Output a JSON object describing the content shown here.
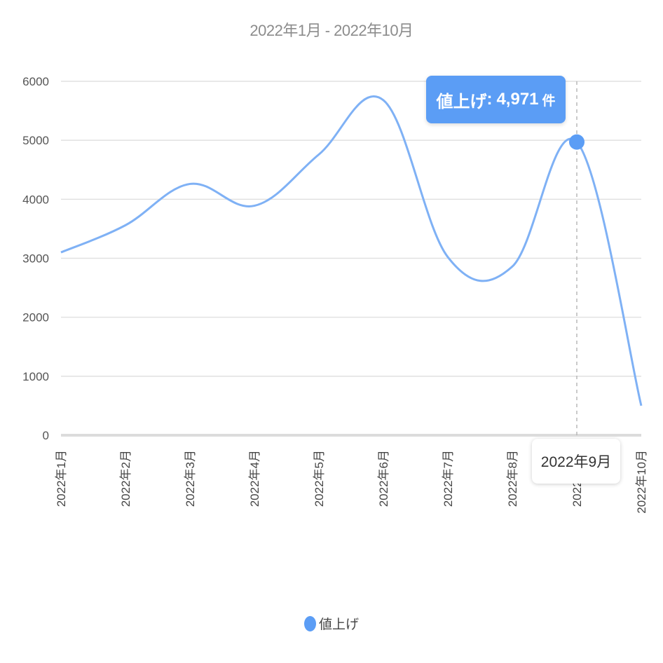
{
  "chart_data": {
    "type": "line",
    "title": "2022年1月 - 2022年10月",
    "categories": [
      "2022年1月",
      "2022年2月",
      "2022年3月",
      "2022年4月",
      "2022年5月",
      "2022年6月",
      "2022年7月",
      "2022年8月",
      "2022年9月",
      "2022年10月"
    ],
    "series": [
      {
        "name": "値上げ",
        "values": [
          3100,
          3560,
          4260,
          3890,
          4760,
          5680,
          3020,
          2860,
          4971,
          500
        ],
        "color": "#7fb1f5"
      }
    ],
    "ylim": [
      0,
      6000
    ],
    "yticks": [
      "0",
      "1000",
      "2000",
      "3000",
      "4000",
      "5000",
      "6000"
    ],
    "grid": true,
    "legend_position": "bottom-center",
    "smooth": true
  },
  "tooltip": {
    "series_name": "値上げ",
    "separator": ":",
    "value_text": "4,971",
    "unit": "件",
    "category": "2022年9月",
    "index": 8,
    "color": "#5b9df5"
  }
}
